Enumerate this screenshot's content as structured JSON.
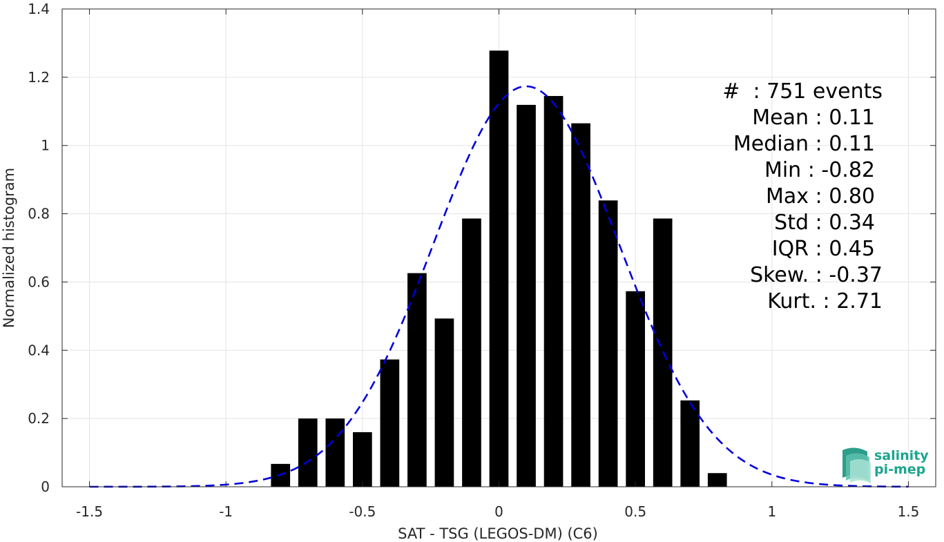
{
  "chart_data": {
    "type": "bar",
    "xlabel": "SAT - TSG (LEGOS-DM) (C6)",
    "ylabel": "Normalized histogram",
    "xlim": [
      -1.6,
      1.6
    ],
    "ylim": [
      0,
      1.4
    ],
    "x_ticks": [
      "-1.5",
      "-1",
      "-0.5",
      "0",
      "0.5",
      "1",
      "1.5"
    ],
    "y_ticks": [
      "0",
      "0.2",
      "0.4",
      "0.6",
      "0.8",
      "1",
      "1.2",
      "1.4"
    ],
    "grid": true,
    "bar_color": "#000000",
    "bins": [
      {
        "x": -0.8,
        "value": 0.067
      },
      {
        "x": -0.7,
        "value": 0.2
      },
      {
        "x": -0.6,
        "value": 0.2
      },
      {
        "x": -0.5,
        "value": 0.16
      },
      {
        "x": -0.4,
        "value": 0.373
      },
      {
        "x": -0.3,
        "value": 0.626
      },
      {
        "x": -0.2,
        "value": 0.493
      },
      {
        "x": -0.1,
        "value": 0.786
      },
      {
        "x": 0.0,
        "value": 1.278
      },
      {
        "x": 0.1,
        "value": 1.119
      },
      {
        "x": 0.2,
        "value": 1.145
      },
      {
        "x": 0.3,
        "value": 1.065
      },
      {
        "x": 0.4,
        "value": 0.839
      },
      {
        "x": 0.5,
        "value": 0.573
      },
      {
        "x": 0.6,
        "value": 0.786
      },
      {
        "x": 0.7,
        "value": 0.253
      },
      {
        "x": 0.8,
        "value": 0.04
      }
    ],
    "fit_curve": {
      "style": "dashed",
      "color": "#0000dd",
      "distribution": "normal",
      "mean": 0.1,
      "std": 0.34,
      "x_range": [
        -1.5,
        1.5
      ]
    }
  },
  "stats": {
    "count": "#  : 751 events",
    "mean": "Mean : 0.11",
    "median": "Median : 0.11",
    "min": "Min : -0.82",
    "max": "Max : 0.80",
    "std": "Std : 0.34",
    "iqr": "IQR : 0.45",
    "skew": "Skew. : -0.37",
    "kurt": "Kurt. : 2.71"
  },
  "logo": {
    "line1": "salinity",
    "line2": "pi-mep",
    "color": "#1aa58f"
  }
}
